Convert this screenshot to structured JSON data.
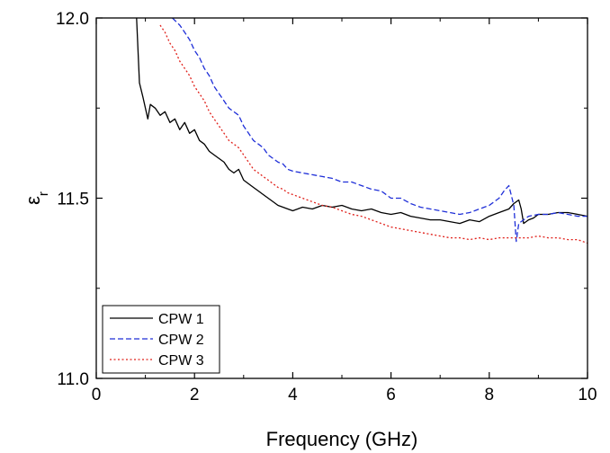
{
  "chart_data": {
    "type": "line",
    "xlabel": "Frequency (GHz)",
    "ylabel_main": "ε",
    "ylabel_sub": "r",
    "xlim": [
      0,
      10
    ],
    "ylim": [
      11.0,
      12.0
    ],
    "xticks": [
      0,
      2,
      4,
      6,
      8,
      10
    ],
    "yticks": [
      "11.0",
      "11.5",
      "12.0"
    ],
    "grid": false,
    "legend_position": "bottom-left",
    "series": [
      {
        "name": "CPW 1",
        "color": "#000000",
        "style": "solid",
        "x": [
          0.82,
          0.88,
          0.95,
          1.05,
          1.1,
          1.2,
          1.3,
          1.4,
          1.5,
          1.6,
          1.7,
          1.8,
          1.9,
          2.0,
          2.1,
          2.2,
          2.3,
          2.4,
          2.5,
          2.6,
          2.7,
          2.8,
          2.9,
          3.0,
          3.1,
          3.2,
          3.3,
          3.4,
          3.5,
          3.6,
          3.7,
          3.8,
          3.9,
          4.0,
          4.2,
          4.4,
          4.6,
          4.8,
          5.0,
          5.2,
          5.4,
          5.6,
          5.8,
          6.0,
          6.2,
          6.4,
          6.6,
          6.8,
          7.0,
          7.2,
          7.4,
          7.6,
          7.8,
          8.0,
          8.2,
          8.4,
          8.5,
          8.6,
          8.65,
          8.7,
          8.8,
          8.9,
          9.0,
          9.2,
          9.4,
          9.6,
          9.8,
          10.0
        ],
        "y": [
          12.0,
          11.82,
          11.78,
          11.72,
          11.76,
          11.75,
          11.73,
          11.74,
          11.71,
          11.72,
          11.69,
          11.71,
          11.68,
          11.69,
          11.66,
          11.65,
          11.63,
          11.62,
          11.61,
          11.6,
          11.58,
          11.57,
          11.58,
          11.55,
          11.54,
          11.53,
          11.52,
          11.51,
          11.5,
          11.49,
          11.48,
          11.475,
          11.47,
          11.465,
          11.475,
          11.47,
          11.48,
          11.475,
          11.48,
          11.47,
          11.465,
          11.47,
          11.46,
          11.455,
          11.46,
          11.45,
          11.445,
          11.44,
          11.44,
          11.435,
          11.43,
          11.44,
          11.435,
          11.45,
          11.46,
          11.47,
          11.485,
          11.495,
          11.47,
          11.43,
          11.44,
          11.445,
          11.455,
          11.455,
          11.46,
          11.46,
          11.455,
          11.45
        ]
      },
      {
        "name": "CPW 2",
        "color": "#1f2fd8",
        "style": "dashed",
        "x": [
          1.55,
          1.7,
          1.8,
          1.9,
          2.0,
          2.1,
          2.2,
          2.3,
          2.4,
          2.5,
          2.6,
          2.7,
          2.8,
          2.9,
          3.0,
          3.1,
          3.2,
          3.3,
          3.4,
          3.5,
          3.6,
          3.7,
          3.8,
          3.9,
          4.0,
          4.2,
          4.4,
          4.6,
          4.8,
          5.0,
          5.2,
          5.4,
          5.6,
          5.8,
          6.0,
          6.2,
          6.4,
          6.6,
          6.8,
          7.0,
          7.2,
          7.4,
          7.6,
          7.8,
          8.0,
          8.2,
          8.3,
          8.4,
          8.5,
          8.55,
          8.6,
          8.7,
          8.8,
          9.0,
          9.2,
          9.4,
          9.6,
          9.8,
          10.0
        ],
        "y": [
          12.0,
          11.98,
          11.96,
          11.94,
          11.91,
          11.89,
          11.86,
          11.84,
          11.81,
          11.79,
          11.77,
          11.75,
          11.74,
          11.73,
          11.7,
          11.68,
          11.66,
          11.65,
          11.64,
          11.62,
          11.61,
          11.6,
          11.595,
          11.58,
          11.575,
          11.57,
          11.565,
          11.56,
          11.555,
          11.545,
          11.545,
          11.535,
          11.525,
          11.52,
          11.5,
          11.5,
          11.485,
          11.475,
          11.47,
          11.465,
          11.46,
          11.455,
          11.46,
          11.47,
          11.48,
          11.5,
          11.52,
          11.535,
          11.48,
          11.38,
          11.43,
          11.44,
          11.45,
          11.455,
          11.455,
          11.46,
          11.455,
          11.45,
          11.45
        ]
      },
      {
        "name": "CPW 3",
        "color": "#e0201a",
        "style": "dotted",
        "x": [
          1.3,
          1.4,
          1.5,
          1.6,
          1.7,
          1.8,
          1.9,
          2.0,
          2.1,
          2.2,
          2.3,
          2.4,
          2.5,
          2.6,
          2.7,
          2.8,
          2.9,
          3.0,
          3.1,
          3.2,
          3.3,
          3.4,
          3.5,
          3.6,
          3.7,
          3.8,
          3.9,
          4.0,
          4.2,
          4.4,
          4.6,
          4.8,
          5.0,
          5.2,
          5.4,
          5.6,
          5.8,
          6.0,
          6.2,
          6.4,
          6.6,
          6.8,
          7.0,
          7.2,
          7.4,
          7.6,
          7.8,
          8.0,
          8.2,
          8.4,
          8.6,
          8.8,
          9.0,
          9.2,
          9.4,
          9.6,
          9.8,
          10.0
        ],
        "y": [
          11.98,
          11.96,
          11.93,
          11.91,
          11.88,
          11.86,
          11.84,
          11.81,
          11.79,
          11.77,
          11.74,
          11.72,
          11.7,
          11.68,
          11.66,
          11.65,
          11.64,
          11.62,
          11.6,
          11.58,
          11.57,
          11.56,
          11.55,
          11.54,
          11.53,
          11.525,
          11.515,
          11.51,
          11.5,
          11.49,
          11.48,
          11.475,
          11.465,
          11.455,
          11.45,
          11.44,
          11.43,
          11.42,
          11.415,
          11.41,
          11.405,
          11.4,
          11.395,
          11.39,
          11.39,
          11.385,
          11.39,
          11.385,
          11.39,
          11.39,
          11.39,
          11.39,
          11.395,
          11.39,
          11.39,
          11.385,
          11.385,
          11.375
        ]
      }
    ]
  }
}
